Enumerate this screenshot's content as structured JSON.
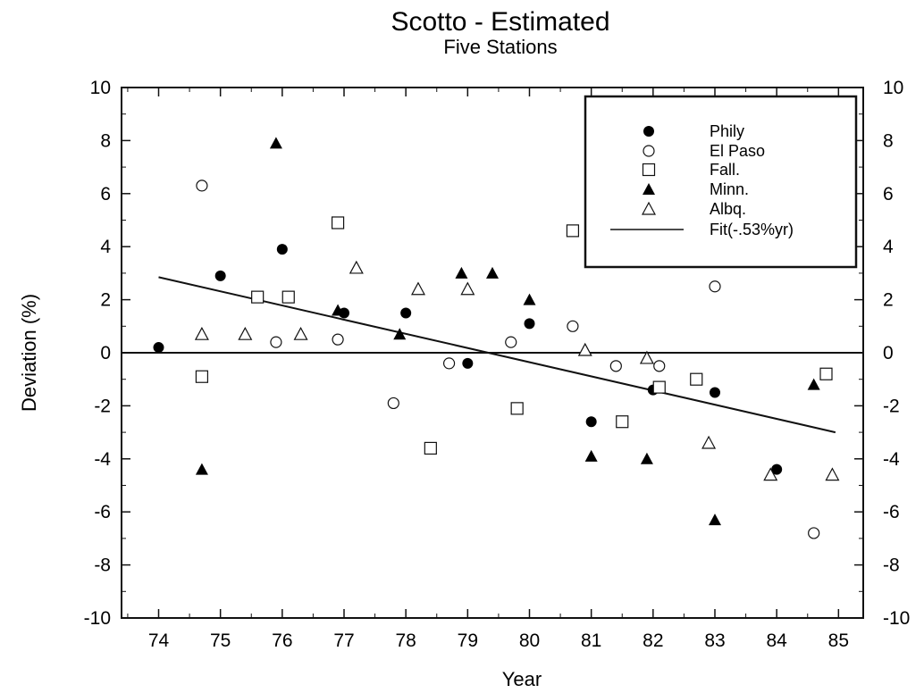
{
  "chart_data": {
    "type": "scatter",
    "title": "Scotto - Estimated",
    "subtitle": "Five Stations",
    "xlabel": "Year",
    "ylabel": "Deviation (%)",
    "xlim": [
      73.4,
      85.4
    ],
    "ylim": [
      -10,
      10
    ],
    "x_ticks": [
      74,
      75,
      76,
      77,
      78,
      79,
      80,
      81,
      82,
      83,
      84,
      85
    ],
    "y_ticks": [
      -10,
      -8,
      -6,
      -4,
      -2,
      0,
      2,
      4,
      6,
      8,
      10
    ],
    "x_tick_labels": [
      "74",
      "75",
      "76",
      "77",
      "78",
      "79",
      "80",
      "81",
      "82",
      "83",
      "84",
      "85"
    ],
    "y_tick_labels": [
      "-10",
      "-8",
      "-6",
      "-4",
      "-2",
      "0",
      "2",
      "4",
      "6",
      "8",
      "10"
    ],
    "right_y_axis": true,
    "grid": false,
    "legend_position": "top-right",
    "series": [
      {
        "name": "Phily",
        "marker": "filled-circle",
        "points": [
          [
            74.0,
            0.2
          ],
          [
            75.0,
            2.9
          ],
          [
            76.0,
            3.9
          ],
          [
            77.0,
            1.5
          ],
          [
            78.0,
            1.5
          ],
          [
            79.0,
            -0.4
          ],
          [
            80.0,
            1.1
          ],
          [
            81.0,
            -2.6
          ],
          [
            82.0,
            -1.4
          ],
          [
            83.0,
            -1.5
          ],
          [
            84.0,
            -4.4
          ]
        ]
      },
      {
        "name": "El Paso",
        "marker": "open-circle",
        "points": [
          [
            74.7,
            6.3
          ],
          [
            75.9,
            0.4
          ],
          [
            76.9,
            0.5
          ],
          [
            77.8,
            -1.9
          ],
          [
            78.7,
            -0.4
          ],
          [
            79.7,
            0.4
          ],
          [
            80.7,
            1.0
          ],
          [
            81.4,
            -0.5
          ],
          [
            82.1,
            -0.5
          ],
          [
            83.0,
            2.5
          ],
          [
            84.6,
            -6.8
          ]
        ]
      },
      {
        "name": "Fall.",
        "marker": "open-square",
        "points": [
          [
            74.7,
            -0.9
          ],
          [
            75.6,
            2.1
          ],
          [
            76.1,
            2.1
          ],
          [
            76.9,
            4.9
          ],
          [
            78.4,
            -3.6
          ],
          [
            79.8,
            -2.1
          ],
          [
            80.7,
            4.6
          ],
          [
            81.5,
            -2.6
          ],
          [
            82.1,
            -1.3
          ],
          [
            82.7,
            -1.0
          ],
          [
            84.8,
            -0.8
          ]
        ]
      },
      {
        "name": "Minn.",
        "marker": "filled-triangle",
        "points": [
          [
            74.7,
            -4.4
          ],
          [
            75.9,
            7.9
          ],
          [
            76.9,
            1.6
          ],
          [
            77.9,
            0.7
          ],
          [
            78.9,
            3.0
          ],
          [
            79.4,
            3.0
          ],
          [
            80.0,
            2.0
          ],
          [
            81.0,
            -3.9
          ],
          [
            81.9,
            -4.0
          ],
          [
            83.0,
            -6.3
          ],
          [
            84.6,
            -1.2
          ]
        ]
      },
      {
        "name": "Albq.",
        "marker": "open-triangle",
        "points": [
          [
            74.7,
            0.7
          ],
          [
            75.4,
            0.7
          ],
          [
            76.3,
            0.7
          ],
          [
            77.2,
            3.2
          ],
          [
            78.2,
            2.4
          ],
          [
            79.0,
            2.4
          ],
          [
            80.9,
            0.1
          ],
          [
            81.9,
            -0.2
          ],
          [
            82.9,
            -3.4
          ],
          [
            83.9,
            -4.6
          ],
          [
            84.9,
            -4.6
          ]
        ]
      }
    ],
    "fit": {
      "name": "Fit(-.53%yr)",
      "from": [
        74.0,
        2.85
      ],
      "to": [
        84.95,
        -3.0
      ]
    },
    "zero_line": 0
  }
}
